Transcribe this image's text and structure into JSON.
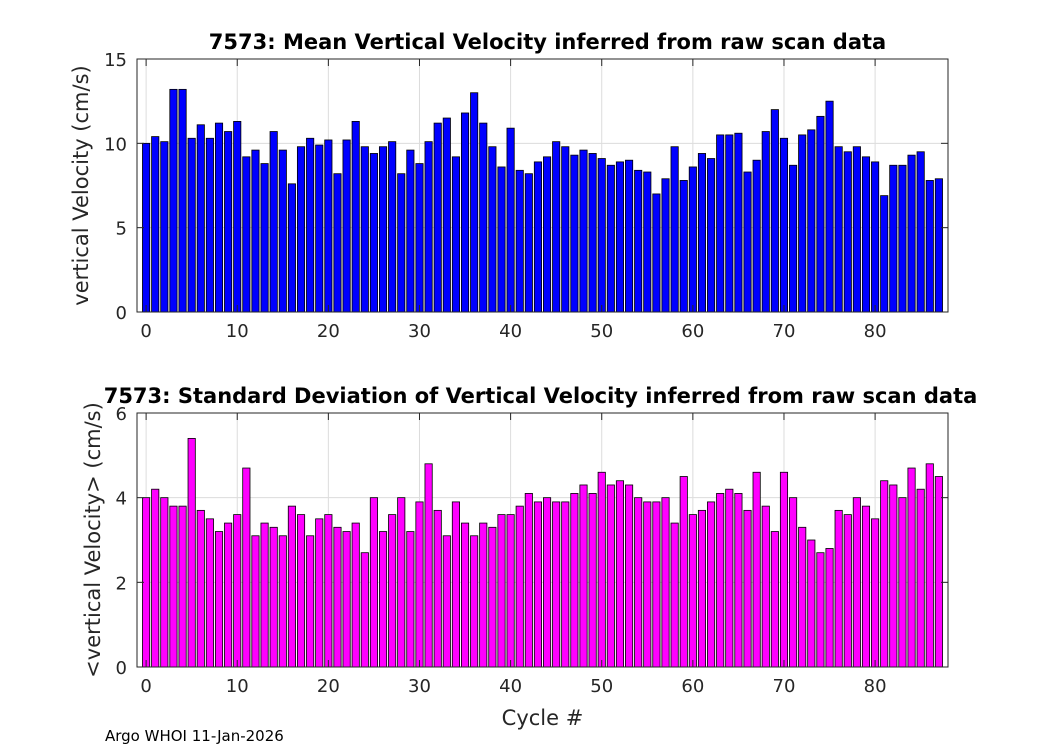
{
  "footer": "Argo WHOI 11-Jan-2026",
  "chart_data": [
    {
      "type": "bar",
      "title": "7573: Mean Vertical Velocity inferred from raw scan data",
      "xlabel": "",
      "ylabel": "vertical Velocity (cm/s)",
      "xlim": [
        -1,
        88
      ],
      "ylim": [
        0,
        15
      ],
      "xticks": [
        0,
        10,
        20,
        30,
        40,
        50,
        60,
        70,
        80
      ],
      "yticks": [
        0,
        5,
        10,
        15
      ],
      "grid": true,
      "bar_color": "#0000ff",
      "edge_color": "#000000",
      "x": [
        0,
        1,
        2,
        3,
        4,
        5,
        6,
        7,
        8,
        9,
        10,
        11,
        12,
        13,
        14,
        15,
        16,
        17,
        18,
        19,
        20,
        21,
        22,
        23,
        24,
        25,
        26,
        27,
        28,
        29,
        30,
        31,
        32,
        33,
        34,
        35,
        36,
        37,
        38,
        39,
        40,
        41,
        42,
        43,
        44,
        45,
        46,
        47,
        48,
        49,
        50,
        51,
        52,
        53,
        54,
        55,
        56,
        57,
        58,
        59,
        60,
        61,
        62,
        63,
        64,
        65,
        66,
        67,
        68,
        69,
        70,
        71,
        72,
        73,
        74,
        75,
        76,
        77,
        78,
        79,
        80,
        81,
        82,
        83,
        84,
        85,
        86,
        87
      ],
      "values": [
        10.0,
        10.4,
        10.1,
        13.2,
        13.2,
        10.3,
        11.1,
        10.3,
        11.2,
        10.7,
        11.3,
        9.2,
        9.6,
        8.8,
        10.7,
        9.6,
        7.6,
        9.8,
        10.3,
        9.9,
        10.2,
        8.2,
        10.2,
        11.3,
        9.8,
        9.4,
        9.8,
        10.1,
        8.2,
        9.6,
        8.8,
        10.1,
        11.2,
        11.5,
        9.2,
        11.8,
        13.0,
        11.2,
        9.8,
        8.6,
        10.9,
        8.4,
        8.2,
        8.9,
        9.2,
        10.1,
        9.8,
        9.3,
        9.6,
        9.4,
        9.1,
        8.7,
        8.9,
        9.0,
        8.4,
        8.3,
        7.0,
        7.9,
        9.8,
        7.8,
        8.6,
        9.4,
        9.1,
        10.5,
        10.5,
        10.6,
        8.3,
        9.0,
        10.7,
        12.0,
        10.3,
        8.7,
        10.5,
        10.8,
        11.6,
        12.5,
        9.8,
        9.5,
        9.8,
        9.2,
        8.9,
        6.9,
        8.7,
        8.7,
        9.3,
        9.5,
        7.8,
        7.9
      ]
    },
    {
      "type": "bar",
      "title": "7573: Standard Deviation of Vertical Velocity inferred from raw scan data",
      "xlabel": "Cycle #",
      "ylabel": "<vertical Velocity> (cm/s)",
      "xlim": [
        -1,
        88
      ],
      "ylim": [
        0,
        6
      ],
      "xticks": [
        0,
        10,
        20,
        30,
        40,
        50,
        60,
        70,
        80
      ],
      "yticks": [
        0,
        2,
        4,
        6
      ],
      "grid": true,
      "bar_color": "#ff00ff",
      "edge_color": "#000000",
      "x": [
        0,
        1,
        2,
        3,
        4,
        5,
        6,
        7,
        8,
        9,
        10,
        11,
        12,
        13,
        14,
        15,
        16,
        17,
        18,
        19,
        20,
        21,
        22,
        23,
        24,
        25,
        26,
        27,
        28,
        29,
        30,
        31,
        32,
        33,
        34,
        35,
        36,
        37,
        38,
        39,
        40,
        41,
        42,
        43,
        44,
        45,
        46,
        47,
        48,
        49,
        50,
        51,
        52,
        53,
        54,
        55,
        56,
        57,
        58,
        59,
        60,
        61,
        62,
        63,
        64,
        65,
        66,
        67,
        68,
        69,
        70,
        71,
        72,
        73,
        74,
        75,
        76,
        77,
        78,
        79,
        80,
        81,
        82,
        83,
        84,
        85,
        86,
        87
      ],
      "values": [
        4.0,
        4.2,
        4.0,
        3.8,
        3.8,
        5.4,
        3.7,
        3.5,
        3.2,
        3.4,
        3.6,
        4.7,
        3.1,
        3.4,
        3.3,
        3.1,
        3.8,
        3.6,
        3.1,
        3.5,
        3.6,
        3.3,
        3.2,
        3.4,
        2.7,
        4.0,
        3.2,
        3.6,
        4.0,
        3.2,
        3.9,
        4.8,
        3.7,
        3.1,
        3.9,
        3.4,
        3.1,
        3.4,
        3.3,
        3.6,
        3.6,
        3.8,
        4.1,
        3.9,
        4.0,
        3.9,
        3.9,
        4.1,
        4.3,
        4.1,
        4.6,
        4.3,
        4.4,
        4.3,
        4.0,
        3.9,
        3.9,
        4.0,
        3.4,
        4.5,
        3.6,
        3.7,
        3.9,
        4.1,
        4.2,
        4.1,
        3.7,
        4.6,
        3.8,
        3.2,
        4.6,
        4.0,
        3.3,
        3.0,
        2.7,
        2.8,
        3.7,
        3.6,
        4.0,
        3.8,
        3.5,
        4.4,
        4.3,
        4.0,
        4.7,
        4.2,
        4.8,
        4.5
      ]
    }
  ]
}
